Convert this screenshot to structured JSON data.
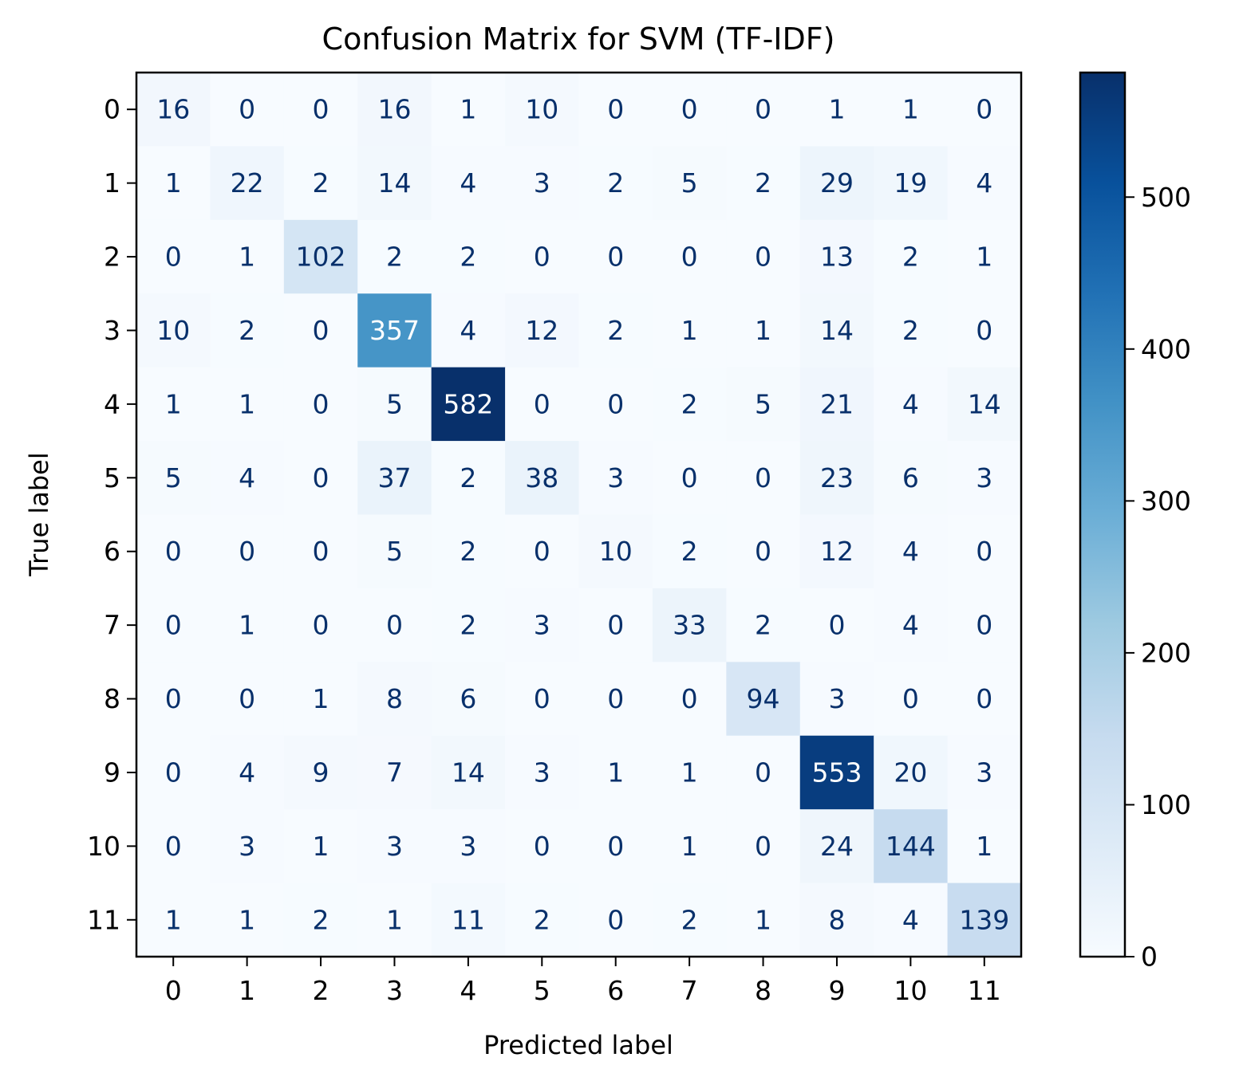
{
  "chart_data": {
    "type": "heatmap",
    "title": "Confusion Matrix for SVM (TF-IDF)",
    "xlabel": "Predicted label",
    "ylabel": "True label",
    "x_categories": [
      "0",
      "1",
      "2",
      "3",
      "4",
      "5",
      "6",
      "7",
      "8",
      "9",
      "10",
      "11"
    ],
    "y_categories": [
      "0",
      "1",
      "2",
      "3",
      "4",
      "5",
      "6",
      "7",
      "8",
      "9",
      "10",
      "11"
    ],
    "matrix": [
      [
        16,
        0,
        0,
        16,
        1,
        10,
        0,
        0,
        0,
        1,
        1,
        0
      ],
      [
        1,
        22,
        2,
        14,
        4,
        3,
        2,
        5,
        2,
        29,
        19,
        4
      ],
      [
        0,
        1,
        102,
        2,
        2,
        0,
        0,
        0,
        0,
        13,
        2,
        1
      ],
      [
        10,
        2,
        0,
        357,
        4,
        12,
        2,
        1,
        1,
        14,
        2,
        0
      ],
      [
        1,
        1,
        0,
        5,
        582,
        0,
        0,
        2,
        5,
        21,
        4,
        14
      ],
      [
        5,
        4,
        0,
        37,
        2,
        38,
        3,
        0,
        0,
        23,
        6,
        3
      ],
      [
        0,
        0,
        0,
        5,
        2,
        0,
        10,
        2,
        0,
        12,
        4,
        0
      ],
      [
        0,
        1,
        0,
        0,
        2,
        3,
        0,
        33,
        2,
        0,
        4,
        0
      ],
      [
        0,
        0,
        1,
        8,
        6,
        0,
        0,
        0,
        94,
        3,
        0,
        0
      ],
      [
        0,
        4,
        9,
        7,
        14,
        3,
        1,
        1,
        0,
        553,
        20,
        3
      ],
      [
        0,
        3,
        1,
        3,
        3,
        0,
        0,
        1,
        0,
        24,
        144,
        1
      ],
      [
        1,
        1,
        2,
        1,
        11,
        2,
        0,
        2,
        1,
        8,
        4,
        139
      ]
    ],
    "colormap": "Blues",
    "color_range": [
      0,
      582
    ],
    "colorbar_ticks": [
      0,
      100,
      200,
      300,
      400,
      500
    ]
  }
}
